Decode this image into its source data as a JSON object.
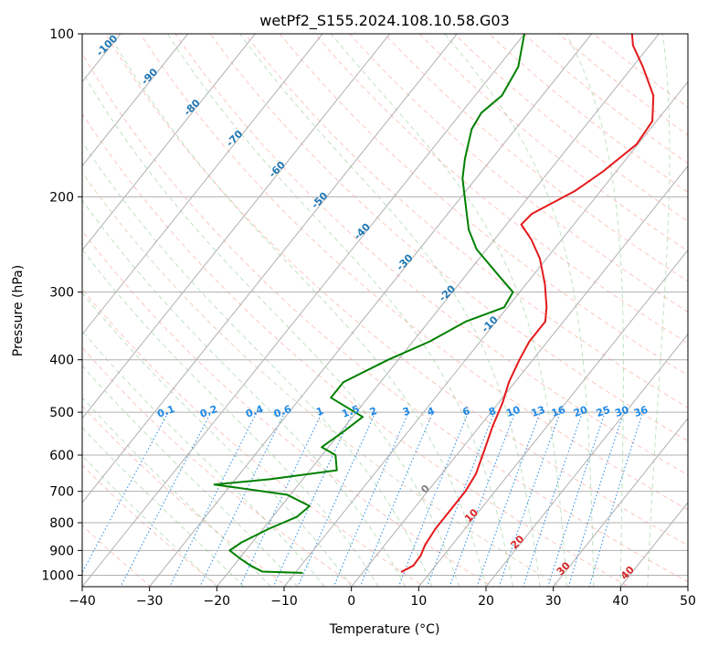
{
  "chart_data": {
    "type": "line",
    "subtype": "skew-t log-p diagram",
    "title": "wetPf2_S155.2024.108.10.58.G03",
    "xlabel": "Temperature (°C)",
    "ylabel": "Pressure (hPa)",
    "xlim": [
      -40,
      50
    ],
    "ylim": [
      1050,
      100
    ],
    "y_scale": "log",
    "grid": true,
    "x_ticks": [
      -40,
      -30,
      -20,
      -10,
      0,
      10,
      20,
      30,
      40,
      50
    ],
    "y_ticks": [
      100,
      200,
      300,
      400,
      500,
      600,
      700,
      800,
      900,
      1000
    ],
    "isotherm_labels": [
      "-100",
      "-90",
      "-80",
      "-70",
      "-60",
      "-50",
      "-40",
      "-30",
      "-20",
      "-10",
      "0",
      "10",
      "20",
      "30",
      "40"
    ],
    "mixing_ratio_labels": [
      "0.1",
      "0.2",
      "0.4",
      "0.6",
      "1",
      "1.5",
      "2",
      "3",
      "4",
      "6",
      "8",
      "10",
      "13",
      "16",
      "20",
      "25",
      "30",
      "36"
    ],
    "colors": {
      "temperature": "#e41a1c",
      "dewpoint": "#008000",
      "isotherm_cold": "#1f77b4",
      "isotherm_zero": "#808080",
      "isotherm_warm": "#d62728",
      "mixing_ratio": "#1e88e5",
      "dry_adiabat": "#fa8072",
      "moist_adiabat": "#2ca02c",
      "grid": "#b0b0b0"
    },
    "series": [
      {
        "key": "temperature",
        "points": [
          {
            "p": 985,
            "t": 5.7
          },
          {
            "p": 960,
            "t": 6.7
          },
          {
            "p": 920,
            "t": 6.6
          },
          {
            "p": 880,
            "t": 6.0
          },
          {
            "p": 820,
            "t": 5.6
          },
          {
            "p": 760,
            "t": 5.6
          },
          {
            "p": 700,
            "t": 5.6
          },
          {
            "p": 650,
            "t": 5.1
          },
          {
            "p": 590,
            "t": 3.6
          },
          {
            "p": 530,
            "t": 1.9
          },
          {
            "p": 480,
            "t": 0.6
          },
          {
            "p": 440,
            "t": -0.9
          },
          {
            "p": 400,
            "t": -2.0
          },
          {
            "p": 370,
            "t": -2.7
          },
          {
            "p": 340,
            "t": -2.7
          },
          {
            "p": 320,
            "t": -4.2
          },
          {
            "p": 290,
            "t": -7.2
          },
          {
            "p": 260,
            "t": -11.0
          },
          {
            "p": 240,
            "t": -14.5
          },
          {
            "p": 225,
            "t": -17.8
          },
          {
            "p": 215,
            "t": -17.5
          },
          {
            "p": 195,
            "t": -13.8
          },
          {
            "p": 180,
            "t": -12.0
          },
          {
            "p": 160,
            "t": -10.2
          },
          {
            "p": 145,
            "t": -10.6
          },
          {
            "p": 130,
            "t": -13.5
          },
          {
            "p": 115,
            "t": -18.5
          },
          {
            "p": 105,
            "t": -22.5
          },
          {
            "p": 100,
            "t": -24.0
          }
        ]
      },
      {
        "key": "dewpoint",
        "points": [
          {
            "p": 990,
            "t": -9.0
          },
          {
            "p": 985,
            "t": -15.0
          },
          {
            "p": 960,
            "t": -17.5
          },
          {
            "p": 930,
            "t": -20.0
          },
          {
            "p": 900,
            "t": -22.4
          },
          {
            "p": 870,
            "t": -21.6
          },
          {
            "p": 820,
            "t": -19.1
          },
          {
            "p": 780,
            "t": -16.4
          },
          {
            "p": 745,
            "t": -15.8
          },
          {
            "p": 710,
            "t": -20.5
          },
          {
            "p": 680,
            "t": -32.5
          },
          {
            "p": 665,
            "t": -25.0
          },
          {
            "p": 640,
            "t": -16.0
          },
          {
            "p": 600,
            "t": -18.0
          },
          {
            "p": 580,
            "t": -21.0
          },
          {
            "p": 540,
            "t": -19.5
          },
          {
            "p": 510,
            "t": -18.5
          },
          {
            "p": 470,
            "t": -25.5
          },
          {
            "p": 440,
            "t": -25.5
          },
          {
            "p": 400,
            "t": -21.5
          },
          {
            "p": 370,
            "t": -17.5
          },
          {
            "p": 340,
            "t": -14.5
          },
          {
            "p": 320,
            "t": -10.5
          },
          {
            "p": 300,
            "t": -11.0
          },
          {
            "p": 280,
            "t": -15.0
          },
          {
            "p": 250,
            "t": -21.5
          },
          {
            "p": 230,
            "t": -25.0
          },
          {
            "p": 200,
            "t": -29.5
          },
          {
            "p": 185,
            "t": -32.0
          },
          {
            "p": 170,
            "t": -34.0
          },
          {
            "p": 150,
            "t": -36.5
          },
          {
            "p": 140,
            "t": -37.0
          },
          {
            "p": 130,
            "t": -36.0
          },
          {
            "p": 115,
            "t": -37.0
          },
          {
            "p": 100,
            "t": -40.0
          }
        ]
      }
    ]
  }
}
